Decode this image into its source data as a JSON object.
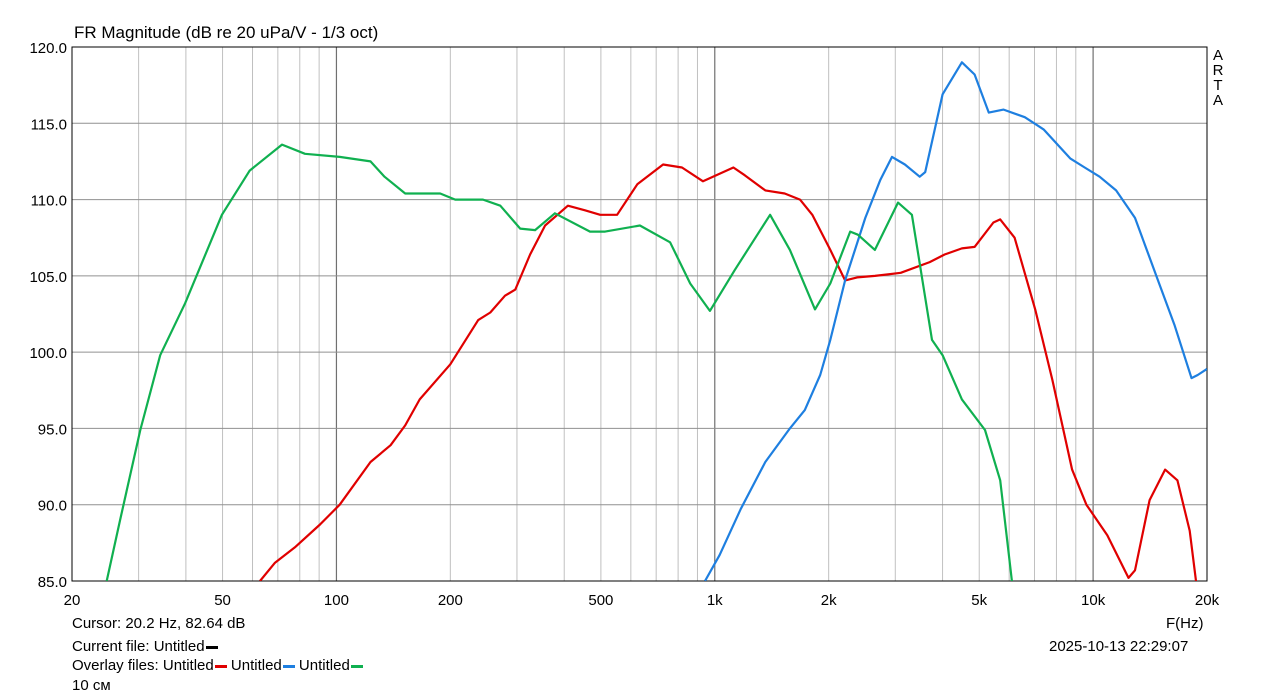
{
  "chart_data": {
    "type": "line",
    "title": "FR Magnitude (dB re 20 uPa/V - 1/3 oct)",
    "xlabel": "F(Hz)",
    "ylabel": "",
    "x_scale": "log",
    "xlim": [
      20,
      20000
    ],
    "ylim": [
      85,
      120
    ],
    "grid": true,
    "x_ticks": [
      20,
      50,
      100,
      200,
      500,
      1000,
      2000,
      5000,
      10000,
      20000
    ],
    "x_tick_labels": [
      "20",
      "50",
      "100",
      "200",
      "500",
      "1k",
      "2k",
      "5k",
      "10k",
      "20k"
    ],
    "y_ticks": [
      85,
      90,
      95,
      100,
      105,
      110,
      115,
      120
    ],
    "y_tick_labels": [
      "85.0",
      "90.0",
      "95.0",
      "100.0",
      "105.0",
      "110.0",
      "115.0",
      "120.0"
    ],
    "series": [
      {
        "color": "#e00000",
        "points": [
          [
            62.8,
            85
          ],
          [
            68.8,
            86.2
          ],
          [
            77.6,
            87.2
          ],
          [
            90.5,
            88.7
          ],
          [
            102,
            90.0
          ],
          [
            123,
            92.8
          ],
          [
            139,
            93.9
          ],
          [
            152,
            95.2
          ],
          [
            166,
            96.9
          ],
          [
            200,
            99.2
          ],
          [
            237,
            102.1
          ],
          [
            255,
            102.6
          ],
          [
            279,
            103.7
          ],
          [
            297,
            104.1
          ],
          [
            325,
            106.4
          ],
          [
            356,
            108.3
          ],
          [
            409,
            109.6
          ],
          [
            454,
            109.3
          ],
          [
            498,
            109.0
          ],
          [
            552,
            109.0
          ],
          [
            624,
            111.0
          ],
          [
            730,
            112.3
          ],
          [
            819,
            112.1
          ],
          [
            931,
            111.2
          ],
          [
            1120,
            112.1
          ],
          [
            1200,
            111.6
          ],
          [
            1360,
            110.6
          ],
          [
            1530,
            110.4
          ],
          [
            1680,
            110.0
          ],
          [
            1810,
            109.0
          ],
          [
            2020,
            106.7
          ],
          [
            2210,
            104.7
          ],
          [
            2380,
            104.9
          ],
          [
            2650,
            105.0
          ],
          [
            3100,
            105.2
          ],
          [
            3700,
            105.9
          ],
          [
            4050,
            106.4
          ],
          [
            4500,
            106.8
          ],
          [
            4860,
            106.9
          ],
          [
            5450,
            108.5
          ],
          [
            5680,
            108.7
          ],
          [
            6200,
            107.5
          ],
          [
            7030,
            102.8
          ],
          [
            7800,
            98.2
          ],
          [
            8800,
            92.3
          ],
          [
            9600,
            90.0
          ],
          [
            10900,
            88.0
          ],
          [
            12400,
            85.2
          ],
          [
            12900,
            85.7
          ],
          [
            14100,
            90.3
          ],
          [
            15500,
            92.3
          ],
          [
            16700,
            91.6
          ],
          [
            18000,
            88.3
          ],
          [
            18700,
            85
          ]
        ]
      },
      {
        "color": "#1e7fe0",
        "points": [
          [
            942,
            85
          ],
          [
            1030,
            86.7
          ],
          [
            1170,
            89.7
          ],
          [
            1360,
            92.8
          ],
          [
            1580,
            95.0
          ],
          [
            1730,
            96.2
          ],
          [
            1900,
            98.5
          ],
          [
            2020,
            100.8
          ],
          [
            2210,
            104.7
          ],
          [
            2500,
            108.8
          ],
          [
            2740,
            111.3
          ],
          [
            2940,
            112.8
          ],
          [
            3180,
            112.3
          ],
          [
            3480,
            111.5
          ],
          [
            3600,
            111.8
          ],
          [
            4000,
            116.9
          ],
          [
            4500,
            119.0
          ],
          [
            4860,
            118.2
          ],
          [
            5300,
            115.7
          ],
          [
            5800,
            115.9
          ],
          [
            6600,
            115.4
          ],
          [
            7400,
            114.6
          ],
          [
            8700,
            112.7
          ],
          [
            9500,
            112.1
          ],
          [
            10400,
            111.5
          ],
          [
            11500,
            110.6
          ],
          [
            12900,
            108.8
          ],
          [
            15000,
            104.4
          ],
          [
            16400,
            101.8
          ],
          [
            18200,
            98.3
          ],
          [
            18900,
            98.5
          ],
          [
            20000,
            98.9
          ]
        ]
      },
      {
        "color": "#10b050",
        "points": [
          [
            24.7,
            85
          ],
          [
            26.8,
            89
          ],
          [
            30.3,
            94.9
          ],
          [
            34.2,
            99.8
          ],
          [
            39.8,
            103.2
          ],
          [
            49.8,
            109.0
          ],
          [
            59,
            111.9
          ],
          [
            71.8,
            113.6
          ],
          [
            82.6,
            113.0
          ],
          [
            102,
            112.8
          ],
          [
            123,
            112.5
          ],
          [
            134,
            111.5
          ],
          [
            152,
            110.4
          ],
          [
            188,
            110.4
          ],
          [
            206,
            110.0
          ],
          [
            244,
            110.0
          ],
          [
            271,
            109.6
          ],
          [
            306,
            108.1
          ],
          [
            335,
            108.0
          ],
          [
            378,
            109.1
          ],
          [
            468,
            107.9
          ],
          [
            513,
            107.9
          ],
          [
            634,
            108.3
          ],
          [
            762,
            107.2
          ],
          [
            861,
            104.5
          ],
          [
            971,
            102.7
          ],
          [
            1130,
            105.4
          ],
          [
            1400,
            109.0
          ],
          [
            1580,
            106.7
          ],
          [
            1840,
            102.8
          ],
          [
            2020,
            104.5
          ],
          [
            2280,
            107.9
          ],
          [
            2390,
            107.7
          ],
          [
            2650,
            106.7
          ],
          [
            3050,
            109.8
          ],
          [
            3320,
            109.0
          ],
          [
            3750,
            100.8
          ],
          [
            4000,
            99.8
          ],
          [
            4500,
            96.9
          ],
          [
            5180,
            94.9
          ],
          [
            5680,
            91.6
          ],
          [
            6100,
            85
          ]
        ]
      }
    ]
  },
  "cursor": "Cursor: 20.2 Hz, 82.64 dB",
  "current_file": "Current file: Untitled",
  "current_file_color": "#000000",
  "overlay_label": "Overlay files: Untitled",
  "overlay_2": "Untitled",
  "overlay_3": "Untitled",
  "note": "10 см",
  "datetime": "2025-10-13  22:29:07",
  "brand": [
    "A",
    "R",
    "T",
    "A"
  ]
}
